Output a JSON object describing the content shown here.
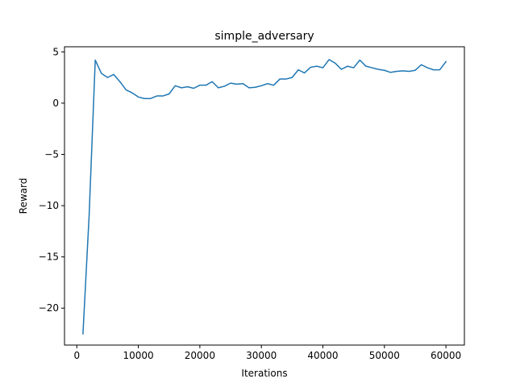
{
  "chart_data": {
    "type": "line",
    "title": "simple_adversary",
    "xlabel": "Iterations",
    "ylabel": "Reward",
    "xlim": [
      -2000,
      63000
    ],
    "ylim": [
      -23.6,
      5.5
    ],
    "xticks": [
      0,
      10000,
      20000,
      30000,
      40000,
      50000,
      60000
    ],
    "xtick_labels": [
      "0",
      "10000",
      "20000",
      "30000",
      "40000",
      "50000",
      "60000"
    ],
    "yticks": [
      5,
      0,
      -5,
      -10,
      -15,
      -20
    ],
    "ytick_labels": [
      "5",
      "0",
      "−5",
      "−10",
      "−15",
      "−20"
    ],
    "grid": false,
    "line_color": "#1f77b4",
    "series": [
      {
        "x": [
          1000,
          2000,
          3000,
          4000,
          5000,
          6000,
          7000,
          8000,
          9000,
          10000,
          11000,
          12000,
          13000,
          14000,
          15000,
          16000,
          17000,
          18000,
          19000,
          20000,
          21000,
          22000,
          23000,
          24000,
          25000,
          26000,
          27000,
          28000,
          29000,
          30000,
          31000,
          32000,
          33000,
          34000,
          35000,
          36000,
          37000,
          38000,
          39000,
          40000,
          41000,
          42000,
          43000,
          44000,
          45000,
          46000,
          47000,
          48000,
          49000,
          50000,
          51000,
          52000,
          53000,
          54000,
          55000,
          56000,
          57000,
          58000,
          59000,
          60000
        ],
        "values": [
          -22.5,
          -11.0,
          4.2,
          2.9,
          2.5,
          2.8,
          2.1,
          1.3,
          1.0,
          0.6,
          0.45,
          0.45,
          0.7,
          0.7,
          0.9,
          1.7,
          1.5,
          1.6,
          1.45,
          1.75,
          1.75,
          2.1,
          1.5,
          1.65,
          1.95,
          1.85,
          1.9,
          1.5,
          1.55,
          1.7,
          1.9,
          1.75,
          2.35,
          2.35,
          2.5,
          3.25,
          2.95,
          3.5,
          3.6,
          3.45,
          4.25,
          3.9,
          3.3,
          3.6,
          3.45,
          4.2,
          3.6,
          3.45,
          3.3,
          3.2,
          3.0,
          3.1,
          3.15,
          3.1,
          3.2,
          3.75,
          3.45,
          3.25,
          3.25,
          4.05
        ]
      }
    ]
  }
}
